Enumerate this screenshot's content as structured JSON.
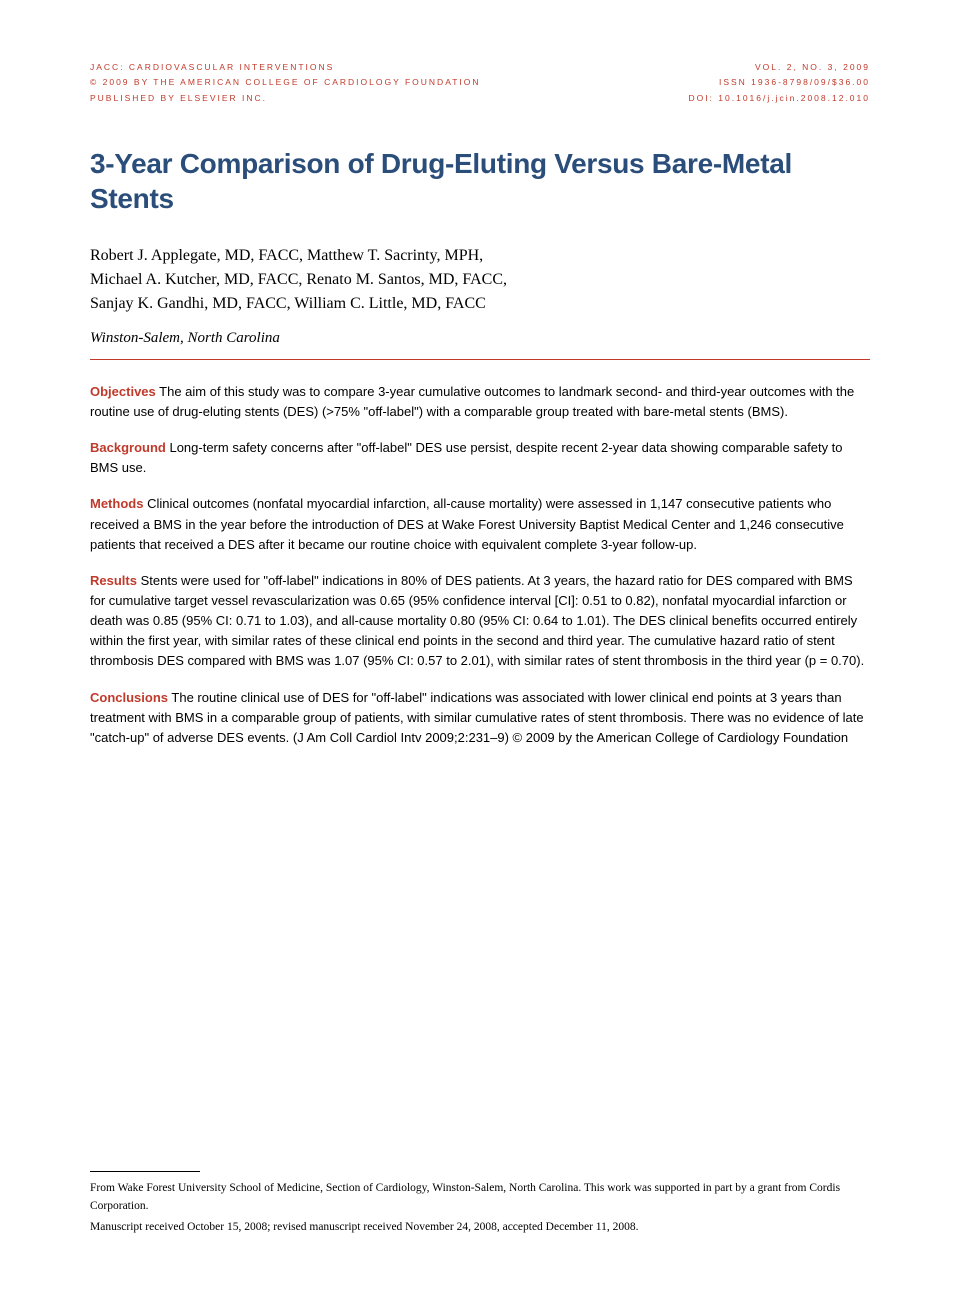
{
  "header": {
    "left_lines": [
      "JACC: CARDIOVASCULAR INTERVENTIONS",
      "© 2009 BY THE AMERICAN COLLEGE OF CARDIOLOGY FOUNDATION",
      "PUBLISHED BY ELSEVIER INC."
    ],
    "right_lines": [
      "VOL. 2, NO. 3, 2009",
      "ISSN 1936-8798/09/$36.00",
      "DOI: 10.1016/j.jcin.2008.12.010"
    ],
    "color": "#c03a2b",
    "fontsize": 8.5,
    "letter_spacing": 2
  },
  "title": {
    "text": "3-Year Comparison of Drug-Eluting Versus Bare-Metal Stents",
    "color": "#2a4d7a",
    "fontsize": 28,
    "weight": "bold"
  },
  "authors": {
    "line1": "Robert J. Applegate, MD, FACC, Matthew T. Sacrinty, MPH,",
    "line2": "Michael A. Kutcher, MD, FACC, Renato M. Santos, MD, FACC,",
    "line3": "Sanjay K. Gandhi, MD, FACC, William C. Little, MD, FACC",
    "fontsize": 16
  },
  "location": {
    "text": "Winston-Salem, North Carolina",
    "fontsize": 15,
    "style": "italic"
  },
  "rule": {
    "color": "#c03a2b"
  },
  "abstract": {
    "fontsize": 13,
    "label_color": "#c03a2b",
    "sections": {
      "objectives": {
        "label": "Objectives",
        "text": "The aim of this study was to compare 3-year cumulative outcomes to landmark second- and third-year outcomes with the routine use of drug-eluting stents (DES) (>75% \"off-label\") with a comparable group treated with bare-metal stents (BMS)."
      },
      "background": {
        "label": "Background",
        "text": "Long-term safety concerns after \"off-label\" DES use persist, despite recent 2-year data showing comparable safety to BMS use."
      },
      "methods": {
        "label": "Methods",
        "text": "Clinical outcomes (nonfatal myocardial infarction, all-cause mortality) were assessed in 1,147 consecutive patients who received a BMS in the year before the introduction of DES at Wake Forest University Baptist Medical Center and 1,246 consecutive patients that received a DES after it became our routine choice with equivalent complete 3-year follow-up."
      },
      "results": {
        "label": "Results",
        "text": "Stents were used for \"off-label\" indications in 80% of DES patients. At 3 years, the hazard ratio for DES compared with BMS for cumulative target vessel revascularization was 0.65 (95% confidence interval [CI]: 0.51 to 0.82), nonfatal myocardial infarction or death was 0.85 (95% CI: 0.71 to 1.03), and all-cause mortality 0.80 (95% CI: 0.64 to 1.01). The DES clinical benefits occurred entirely within the first year, with similar rates of these clinical end points in the second and third year. The cumulative hazard ratio of stent thrombosis DES compared with BMS was 1.07 (95% CI: 0.57 to 2.01), with similar rates of stent thrombosis in the third year (p = 0.70)."
      },
      "conclusions": {
        "label": "Conclusions",
        "text": "The routine clinical use of DES for \"off-label\" indications was associated with lower clinical end points at 3 years than treatment with BMS in a comparable group of patients, with similar cumulative rates of stent thrombosis. There was no evidence of late \"catch-up\" of adverse DES events.   (J Am Coll Cardiol Intv 2009;2:231–9) © 2009 by the American College of Cardiology Foundation"
      }
    }
  },
  "footnote": {
    "fontsize": 11.5,
    "lines": [
      "From Wake Forest University School of Medicine, Section of Cardiology, Winston-Salem, North Carolina. This work was supported in part by a grant from Cordis Corporation.",
      "Manuscript received October 15, 2008; revised manuscript received November 24, 2008, accepted December 11, 2008."
    ]
  }
}
